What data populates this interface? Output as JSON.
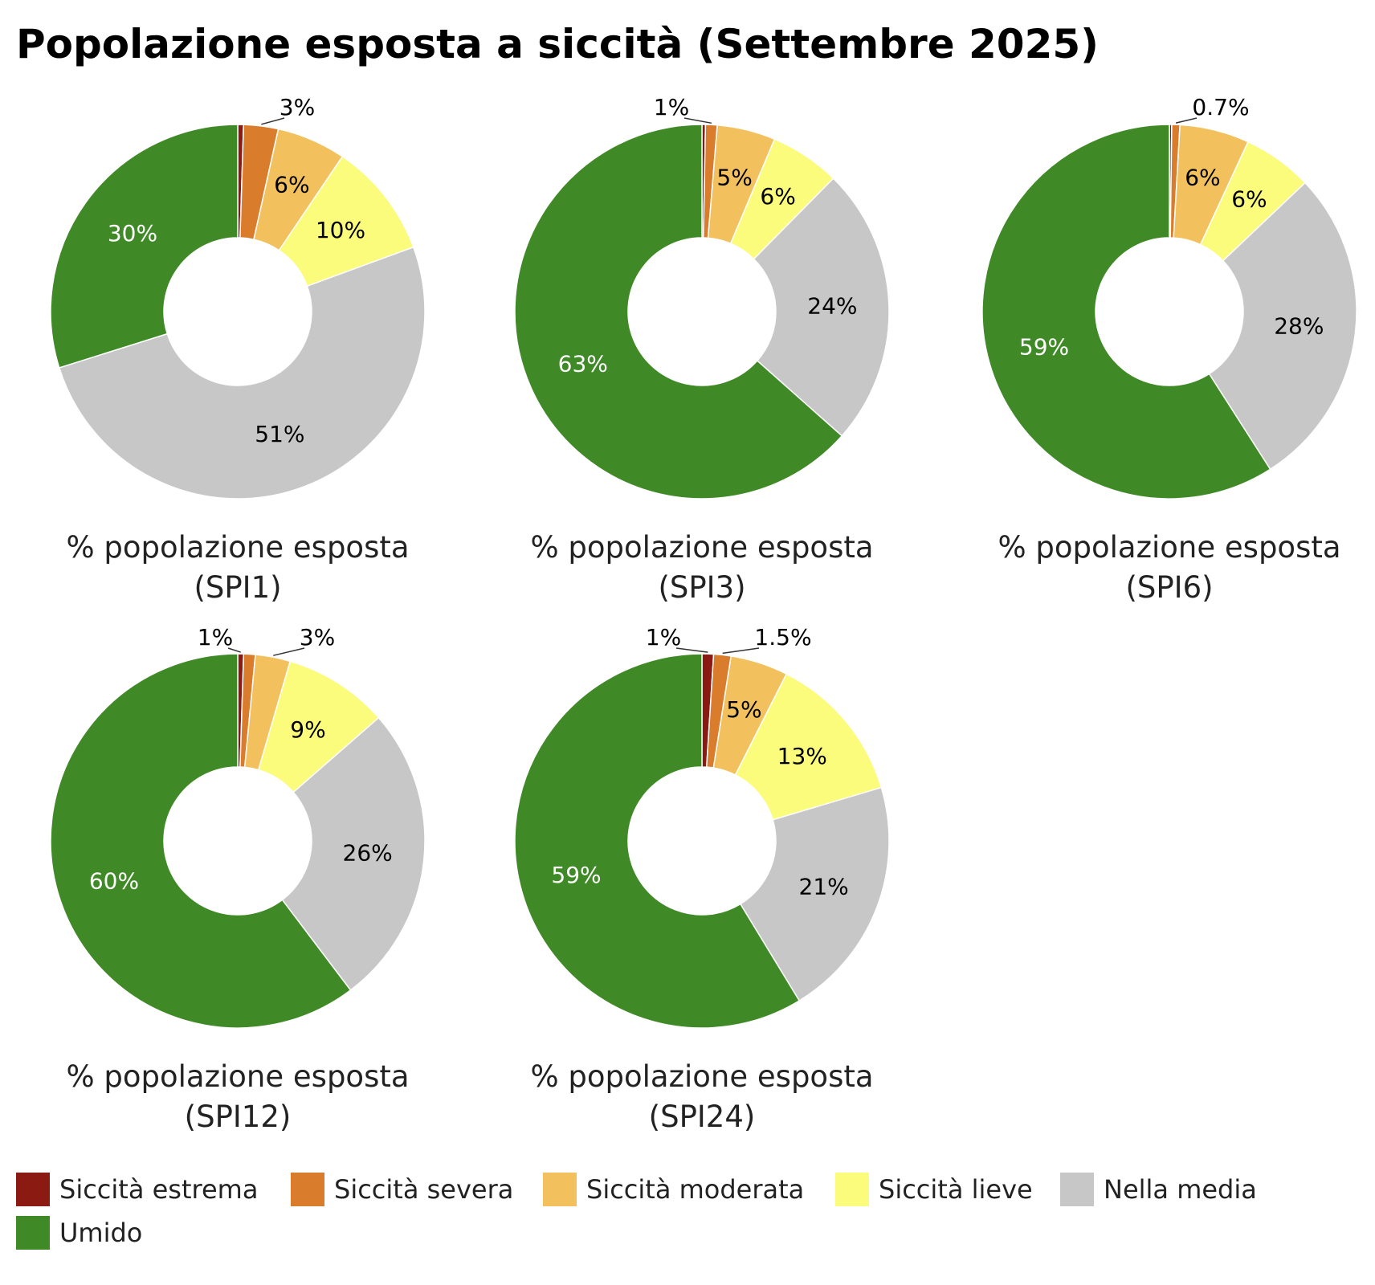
{
  "chart_data": {
    "type": "donut",
    "title": "Popolazione esposta a siccità (Settembre 2025)",
    "grid": false,
    "legend_placement": "bottom",
    "legend": [
      {
        "name": "Siccità estrema",
        "color": "#8b1a12"
      },
      {
        "name": "Siccità severa",
        "color": "#d97c2b"
      },
      {
        "name": "Siccità moderata",
        "color": "#f2c15e"
      },
      {
        "name": "Siccità lieve",
        "color": "#fbfb7c"
      },
      {
        "name": "Nella media",
        "color": "#c7c7c7"
      },
      {
        "name": "Umido",
        "color": "#3f8a27"
      }
    ],
    "label_colors": {
      "dark": "#000000",
      "light": "#ffffff"
    },
    "charts": [
      {
        "caption_line1": "% popolazione esposta",
        "caption_line2": "(SPI1)",
        "values": [
          0.5,
          3,
          6,
          10,
          51,
          30
        ],
        "labels": [
          "",
          "3%",
          "6%",
          "10%",
          "51%",
          "30%"
        ]
      },
      {
        "caption_line1": "% popolazione esposta",
        "caption_line2": "(SPI3)",
        "values": [
          0.3,
          1,
          5,
          6,
          24,
          63
        ],
        "labels": [
          "",
          "1%",
          "5%",
          "6%",
          "24%",
          "63%"
        ]
      },
      {
        "caption_line1": "% popolazione esposta",
        "caption_line2": "(SPI6)",
        "values": [
          0.2,
          0.7,
          6,
          6,
          28,
          59
        ],
        "labels": [
          "",
          "0.7%",
          "6%",
          "6%",
          "28%",
          "59%"
        ]
      },
      {
        "caption_line1": "% popolazione esposta",
        "caption_line2": "(SPI12)",
        "values": [
          0.5,
          1,
          3,
          9,
          26,
          60
        ],
        "labels": [
          "1%",
          "",
          "3%",
          "9%",
          "26%",
          "60%"
        ]
      },
      {
        "caption_line1": "% popolazione esposta",
        "caption_line2": "(SPI24)",
        "values": [
          1,
          1.5,
          5,
          13,
          21,
          59
        ],
        "labels": [
          "1%",
          "1.5%",
          "5%",
          "13%",
          "21%",
          "59%"
        ]
      }
    ]
  }
}
